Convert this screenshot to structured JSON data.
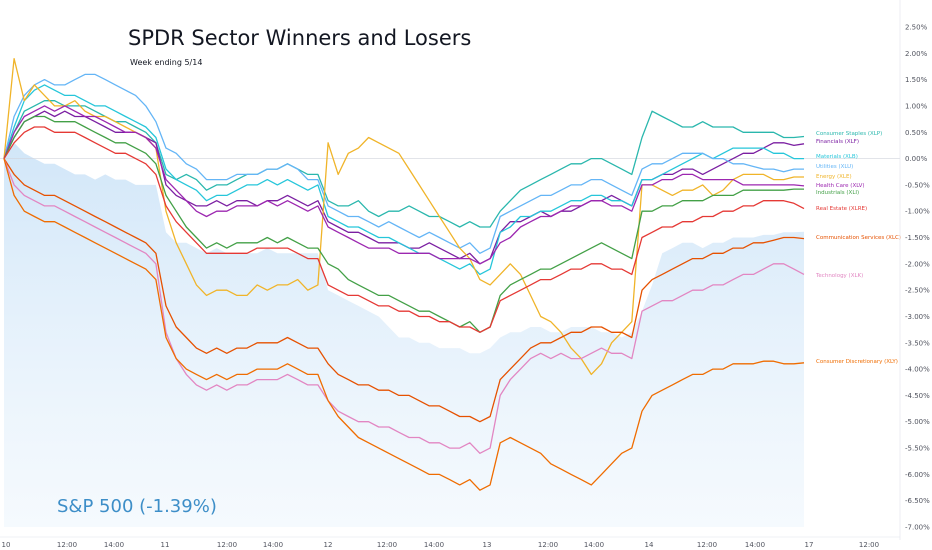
{
  "title": "SPDR Sector Winners and Losers",
  "subtitle": "Week ending 5/14",
  "benchmark_label": "S&P 500 (-1.39%)",
  "colors": {
    "benchmark_fill": "#cfe5f8",
    "zero_line": "#d1d4dc",
    "grid": "#f0f3fa"
  },
  "chart_data": {
    "type": "line",
    "title": "SPDR Sector Winners and Losers",
    "subtitle": "Week ending 5/14",
    "ylim": [
      -7.0,
      2.5
    ],
    "y_ticks": [
      "2.50%",
      "2.00%",
      "1.50%",
      "1.00%",
      "0.50%",
      "0.00%",
      "-0.50%",
      "-1.00%",
      "-1.50%",
      "-2.00%",
      "-2.50%",
      "-3.00%",
      "-3.50%",
      "-4.00%",
      "-4.50%",
      "-5.00%",
      "-5.50%",
      "-6.00%",
      "-6.50%",
      "-7.00%"
    ],
    "x_ticks": [
      "10",
      "12:00",
      "14:00",
      "11",
      "12:00",
      "14:00",
      "12",
      "12:00",
      "14:00",
      "13",
      "12:00",
      "14:00",
      "14",
      "12:00",
      "14:00",
      "17",
      "12:00"
    ],
    "grid": false,
    "legend": "right-end labels",
    "x_points": 80,
    "benchmark": {
      "name": "S&P 500 (-1.39%)",
      "values": [
        0,
        0.3,
        0.1,
        0.0,
        -0.1,
        -0.1,
        -0.2,
        -0.3,
        -0.3,
        -0.4,
        -0.3,
        -0.4,
        -0.4,
        -0.5,
        -0.5,
        -0.5,
        -1.4,
        -1.6,
        -1.6,
        -1.7,
        -1.8,
        -1.7,
        -1.8,
        -1.8,
        -1.8,
        -1.8,
        -1.7,
        -1.8,
        -1.8,
        -1.8,
        -1.8,
        -1.8,
        -2.5,
        -2.6,
        -2.7,
        -2.8,
        -2.9,
        -3.0,
        -3.2,
        -3.4,
        -3.4,
        -3.5,
        -3.5,
        -3.6,
        -3.6,
        -3.6,
        -3.7,
        -3.7,
        -3.6,
        -3.4,
        -3.3,
        -3.3,
        -3.2,
        -3.2,
        -3.3,
        -3.3,
        -3.2,
        -3.2,
        -3.2,
        -3.3,
        -3.3,
        -3.4,
        -3.3,
        -2.9,
        -2.4,
        -1.8,
        -1.7,
        -1.6,
        -1.6,
        -1.7,
        -1.6,
        -1.6,
        -1.5,
        -1.5,
        -1.5,
        -1.45,
        -1.45,
        -1.4,
        -1.4,
        -1.39
      ]
    },
    "series": [
      {
        "name": "Consumer Staples (XLP)",
        "color": "#2ab7ad",
        "values": [
          0,
          0.5,
          0.9,
          1.0,
          1.1,
          1.1,
          1.0,
          1.0,
          1.0,
          0.9,
          0.8,
          0.7,
          0.7,
          0.6,
          0.5,
          0.3,
          -0.3,
          -0.4,
          -0.3,
          -0.4,
          -0.6,
          -0.5,
          -0.5,
          -0.4,
          -0.3,
          -0.3,
          -0.2,
          -0.2,
          -0.1,
          -0.2,
          -0.3,
          -0.3,
          -0.8,
          -0.9,
          -0.9,
          -0.8,
          -1.0,
          -1.1,
          -1.0,
          -1.0,
          -0.9,
          -1.0,
          -1.1,
          -1.1,
          -1.2,
          -1.3,
          -1.2,
          -1.3,
          -1.3,
          -1.0,
          -0.8,
          -0.6,
          -0.5,
          -0.4,
          -0.3,
          -0.2,
          -0.1,
          -0.1,
          0.0,
          0.0,
          -0.1,
          -0.2,
          -0.3,
          0.4,
          0.9,
          0.8,
          0.7,
          0.6,
          0.6,
          0.7,
          0.6,
          0.6,
          0.6,
          0.5,
          0.5,
          0.5,
          0.5,
          0.4,
          0.4,
          0.42
        ]
      },
      {
        "name": "Financials (XLF)",
        "color": "#7b1fa2",
        "values": [
          0,
          0.4,
          0.7,
          0.8,
          0.9,
          0.8,
          0.9,
          0.8,
          0.8,
          0.7,
          0.6,
          0.5,
          0.5,
          0.5,
          0.4,
          0.3,
          -0.5,
          -0.7,
          -0.8,
          -0.9,
          -0.9,
          -0.8,
          -0.9,
          -0.8,
          -0.8,
          -0.9,
          -0.8,
          -0.8,
          -0.7,
          -0.8,
          -0.9,
          -0.8,
          -1.2,
          -1.3,
          -1.4,
          -1.4,
          -1.5,
          -1.6,
          -1.6,
          -1.6,
          -1.7,
          -1.7,
          -1.6,
          -1.7,
          -1.8,
          -1.9,
          -1.8,
          -2.0,
          -1.9,
          -1.4,
          -1.2,
          -1.2,
          -1.1,
          -1.0,
          -1.1,
          -1.0,
          -1.0,
          -0.9,
          -0.8,
          -0.8,
          -0.7,
          -0.8,
          -0.9,
          -0.4,
          -0.4,
          -0.3,
          -0.3,
          -0.2,
          -0.2,
          -0.3,
          -0.2,
          -0.1,
          0.0,
          0.1,
          0.1,
          0.2,
          0.3,
          0.3,
          0.25,
          0.28
        ]
      },
      {
        "name": "Materials (XLB)",
        "color": "#26c6da",
        "values": [
          0,
          0.6,
          1.1,
          1.3,
          1.4,
          1.3,
          1.2,
          1.2,
          1.1,
          1.0,
          1.0,
          0.9,
          0.8,
          0.7,
          0.6,
          0.4,
          -0.2,
          -0.4,
          -0.5,
          -0.6,
          -0.8,
          -0.7,
          -0.7,
          -0.6,
          -0.5,
          -0.5,
          -0.4,
          -0.5,
          -0.4,
          -0.5,
          -0.6,
          -0.5,
          -1.1,
          -1.2,
          -1.3,
          -1.3,
          -1.4,
          -1.5,
          -1.5,
          -1.6,
          -1.7,
          -1.8,
          -1.8,
          -1.9,
          -2.0,
          -2.1,
          -2.0,
          -2.2,
          -2.1,
          -1.4,
          -1.3,
          -1.1,
          -1.1,
          -1.0,
          -1.0,
          -0.9,
          -0.8,
          -0.8,
          -0.7,
          -0.7,
          -0.8,
          -0.8,
          -0.9,
          -0.4,
          -0.4,
          -0.3,
          -0.2,
          -0.1,
          0.0,
          0.1,
          0.0,
          0.1,
          0.2,
          0.2,
          0.2,
          0.2,
          0.1,
          0.1,
          0.0,
          0.0
        ]
      },
      {
        "name": "Utilities (XLU)",
        "color": "#64b5f6",
        "values": [
          0,
          0.8,
          1.2,
          1.4,
          1.5,
          1.4,
          1.4,
          1.5,
          1.6,
          1.6,
          1.5,
          1.4,
          1.3,
          1.2,
          1.0,
          0.7,
          0.2,
          0.1,
          -0.1,
          -0.2,
          -0.4,
          -0.4,
          -0.4,
          -0.3,
          -0.3,
          -0.3,
          -0.2,
          -0.2,
          -0.1,
          -0.2,
          -0.4,
          -0.4,
          -0.9,
          -1.0,
          -1.1,
          -1.1,
          -1.2,
          -1.3,
          -1.2,
          -1.3,
          -1.4,
          -1.5,
          -1.4,
          -1.5,
          -1.6,
          -1.7,
          -1.6,
          -1.8,
          -1.7,
          -1.1,
          -1.0,
          -0.9,
          -0.8,
          -0.7,
          -0.7,
          -0.6,
          -0.5,
          -0.5,
          -0.4,
          -0.4,
          -0.5,
          -0.6,
          -0.7,
          -0.2,
          -0.1,
          -0.1,
          0.0,
          0.1,
          0.1,
          0.1,
          0.0,
          0.0,
          -0.1,
          -0.1,
          -0.15,
          -0.2,
          -0.2,
          -0.25,
          -0.2,
          -0.2
        ]
      },
      {
        "name": "Energy (XLE)",
        "color": "#f0b429",
        "values": [
          0,
          1.9,
          1.1,
          1.4,
          1.2,
          1.0,
          1.0,
          1.1,
          0.9,
          0.8,
          0.8,
          0.7,
          0.6,
          0.5,
          0.4,
          0.2,
          -1.0,
          -1.6,
          -2.0,
          -2.4,
          -2.6,
          -2.5,
          -2.5,
          -2.6,
          -2.6,
          -2.4,
          -2.5,
          -2.4,
          -2.4,
          -2.3,
          -2.5,
          -2.4,
          0.3,
          -0.3,
          0.1,
          0.2,
          0.4,
          0.3,
          0.2,
          0.1,
          -0.2,
          -0.5,
          -0.8,
          -1.1,
          -1.4,
          -1.7,
          -1.9,
          -2.3,
          -2.4,
          -2.2,
          -2.0,
          -2.2,
          -2.6,
          -3.0,
          -3.1,
          -3.3,
          -3.6,
          -3.8,
          -4.1,
          -3.9,
          -3.5,
          -3.3,
          -3.1,
          -0.5,
          -0.5,
          -0.6,
          -0.7,
          -0.6,
          -0.6,
          -0.5,
          -0.7,
          -0.6,
          -0.4,
          -0.3,
          -0.3,
          -0.3,
          -0.4,
          -0.4,
          -0.35,
          -0.35
        ]
      },
      {
        "name": "Health Care (XLV)",
        "color": "#9c27b0",
        "values": [
          0,
          0.5,
          0.8,
          0.9,
          1.0,
          0.9,
          1.0,
          0.9,
          0.8,
          0.8,
          0.7,
          0.6,
          0.5,
          0.5,
          0.4,
          0.2,
          -0.4,
          -0.6,
          -0.8,
          -1.0,
          -1.1,
          -1.0,
          -1.0,
          -0.9,
          -0.9,
          -0.9,
          -0.8,
          -0.9,
          -0.8,
          -0.9,
          -1.0,
          -0.9,
          -1.3,
          -1.4,
          -1.5,
          -1.6,
          -1.7,
          -1.7,
          -1.7,
          -1.8,
          -1.8,
          -1.8,
          -1.8,
          -1.9,
          -1.9,
          -1.9,
          -1.9,
          -2.0,
          -1.9,
          -1.6,
          -1.5,
          -1.3,
          -1.2,
          -1.1,
          -1.1,
          -1.0,
          -0.9,
          -0.9,
          -0.8,
          -0.8,
          -0.9,
          -0.9,
          -1.0,
          -0.5,
          -0.5,
          -0.4,
          -0.4,
          -0.3,
          -0.3,
          -0.4,
          -0.4,
          -0.4,
          -0.4,
          -0.5,
          -0.5,
          -0.5,
          -0.5,
          -0.5,
          -0.5,
          -0.52
        ]
      },
      {
        "name": "Industrials (XLI)",
        "color": "#43a047",
        "values": [
          0,
          0.4,
          0.7,
          0.8,
          0.8,
          0.7,
          0.7,
          0.7,
          0.6,
          0.5,
          0.4,
          0.3,
          0.3,
          0.2,
          0.1,
          -0.1,
          -0.7,
          -1.0,
          -1.3,
          -1.5,
          -1.7,
          -1.6,
          -1.7,
          -1.6,
          -1.6,
          -1.6,
          -1.5,
          -1.6,
          -1.5,
          -1.6,
          -1.7,
          -1.7,
          -2.0,
          -2.1,
          -2.3,
          -2.4,
          -2.5,
          -2.6,
          -2.6,
          -2.7,
          -2.8,
          -2.9,
          -2.9,
          -3.0,
          -3.1,
          -3.2,
          -3.1,
          -3.3,
          -3.2,
          -2.6,
          -2.4,
          -2.3,
          -2.2,
          -2.1,
          -2.1,
          -2.0,
          -1.9,
          -1.8,
          -1.7,
          -1.6,
          -1.7,
          -1.8,
          -1.9,
          -1.0,
          -1.0,
          -0.9,
          -0.9,
          -0.8,
          -0.8,
          -0.8,
          -0.7,
          -0.7,
          -0.7,
          -0.6,
          -0.6,
          -0.6,
          -0.6,
          -0.6,
          -0.58,
          -0.58
        ]
      },
      {
        "name": "Real Estate (XLRE)",
        "color": "#e53935",
        "values": [
          0,
          0.3,
          0.5,
          0.6,
          0.6,
          0.5,
          0.5,
          0.5,
          0.4,
          0.3,
          0.2,
          0.1,
          0.1,
          0.0,
          -0.1,
          -0.3,
          -0.9,
          -1.2,
          -1.4,
          -1.6,
          -1.8,
          -1.8,
          -1.8,
          -1.8,
          -1.8,
          -1.7,
          -1.7,
          -1.7,
          -1.7,
          -1.8,
          -1.9,
          -1.9,
          -2.4,
          -2.5,
          -2.6,
          -2.6,
          -2.7,
          -2.8,
          -2.8,
          -2.9,
          -2.9,
          -3.0,
          -3.0,
          -3.1,
          -3.1,
          -3.2,
          -3.2,
          -3.3,
          -3.2,
          -2.7,
          -2.6,
          -2.5,
          -2.4,
          -2.3,
          -2.3,
          -2.2,
          -2.1,
          -2.1,
          -2.0,
          -2.0,
          -2.1,
          -2.1,
          -2.2,
          -1.5,
          -1.4,
          -1.3,
          -1.3,
          -1.2,
          -1.2,
          -1.1,
          -1.1,
          -1.0,
          -1.0,
          -0.9,
          -0.9,
          -0.8,
          -0.8,
          -0.8,
          -0.85,
          -0.95
        ]
      },
      {
        "name": "Communication Services (XLC)",
        "color": "#e65100",
        "values": [
          0,
          -0.3,
          -0.5,
          -0.6,
          -0.7,
          -0.7,
          -0.8,
          -0.9,
          -1.0,
          -1.1,
          -1.2,
          -1.3,
          -1.4,
          -1.5,
          -1.6,
          -1.8,
          -2.8,
          -3.2,
          -3.4,
          -3.6,
          -3.7,
          -3.6,
          -3.7,
          -3.6,
          -3.6,
          -3.5,
          -3.5,
          -3.5,
          -3.4,
          -3.5,
          -3.6,
          -3.6,
          -3.9,
          -4.1,
          -4.2,
          -4.3,
          -4.3,
          -4.4,
          -4.4,
          -4.5,
          -4.5,
          -4.6,
          -4.7,
          -4.7,
          -4.8,
          -4.9,
          -4.9,
          -5.0,
          -4.9,
          -4.2,
          -4.0,
          -3.8,
          -3.6,
          -3.5,
          -3.5,
          -3.4,
          -3.3,
          -3.3,
          -3.2,
          -3.2,
          -3.3,
          -3.3,
          -3.4,
          -2.5,
          -2.3,
          -2.2,
          -2.1,
          -2.0,
          -1.9,
          -1.9,
          -1.8,
          -1.8,
          -1.7,
          -1.7,
          -1.6,
          -1.6,
          -1.55,
          -1.5,
          -1.5,
          -1.52
        ]
      },
      {
        "name": "Technology (XLK)",
        "color": "#e286c2",
        "values": [
          0,
          -0.5,
          -0.7,
          -0.8,
          -0.9,
          -0.9,
          -1.0,
          -1.1,
          -1.2,
          -1.3,
          -1.4,
          -1.5,
          -1.6,
          -1.7,
          -1.8,
          -2.0,
          -3.3,
          -3.8,
          -4.1,
          -4.3,
          -4.4,
          -4.3,
          -4.4,
          -4.3,
          -4.3,
          -4.2,
          -4.2,
          -4.2,
          -4.1,
          -4.2,
          -4.3,
          -4.3,
          -4.6,
          -4.8,
          -4.9,
          -5.0,
          -5.0,
          -5.1,
          -5.1,
          -5.2,
          -5.3,
          -5.3,
          -5.4,
          -5.4,
          -5.5,
          -5.5,
          -5.4,
          -5.6,
          -5.5,
          -4.5,
          -4.2,
          -4.0,
          -3.8,
          -3.7,
          -3.8,
          -3.7,
          -3.8,
          -3.8,
          -3.7,
          -3.6,
          -3.7,
          -3.7,
          -3.8,
          -2.9,
          -2.8,
          -2.7,
          -2.7,
          -2.6,
          -2.5,
          -2.5,
          -2.4,
          -2.4,
          -2.3,
          -2.2,
          -2.2,
          -2.1,
          -2.0,
          -2.0,
          -2.1,
          -2.2
        ]
      },
      {
        "name": "Consumer Discretionary (XLY)",
        "color": "#ef6c00",
        "values": [
          0,
          -0.7,
          -1.0,
          -1.1,
          -1.2,
          -1.2,
          -1.3,
          -1.4,
          -1.5,
          -1.6,
          -1.7,
          -1.8,
          -1.9,
          -2.0,
          -2.1,
          -2.3,
          -3.4,
          -3.8,
          -4.0,
          -4.1,
          -4.2,
          -4.1,
          -4.2,
          -4.1,
          -4.1,
          -4.0,
          -4.0,
          -4.0,
          -3.9,
          -4.0,
          -4.1,
          -4.1,
          -4.6,
          -4.9,
          -5.1,
          -5.3,
          -5.4,
          -5.5,
          -5.6,
          -5.7,
          -5.8,
          -5.9,
          -6.0,
          -6.0,
          -6.1,
          -6.2,
          -6.1,
          -6.3,
          -6.2,
          -5.4,
          -5.3,
          -5.4,
          -5.5,
          -5.6,
          -5.8,
          -5.9,
          -6.0,
          -6.1,
          -6.2,
          -6.0,
          -5.8,
          -5.6,
          -5.5,
          -4.8,
          -4.5,
          -4.4,
          -4.3,
          -4.2,
          -4.1,
          -4.1,
          -4.0,
          -4.0,
          -3.9,
          -3.9,
          -3.9,
          -3.85,
          -3.85,
          -3.9,
          -3.9,
          -3.88
        ]
      }
    ]
  }
}
